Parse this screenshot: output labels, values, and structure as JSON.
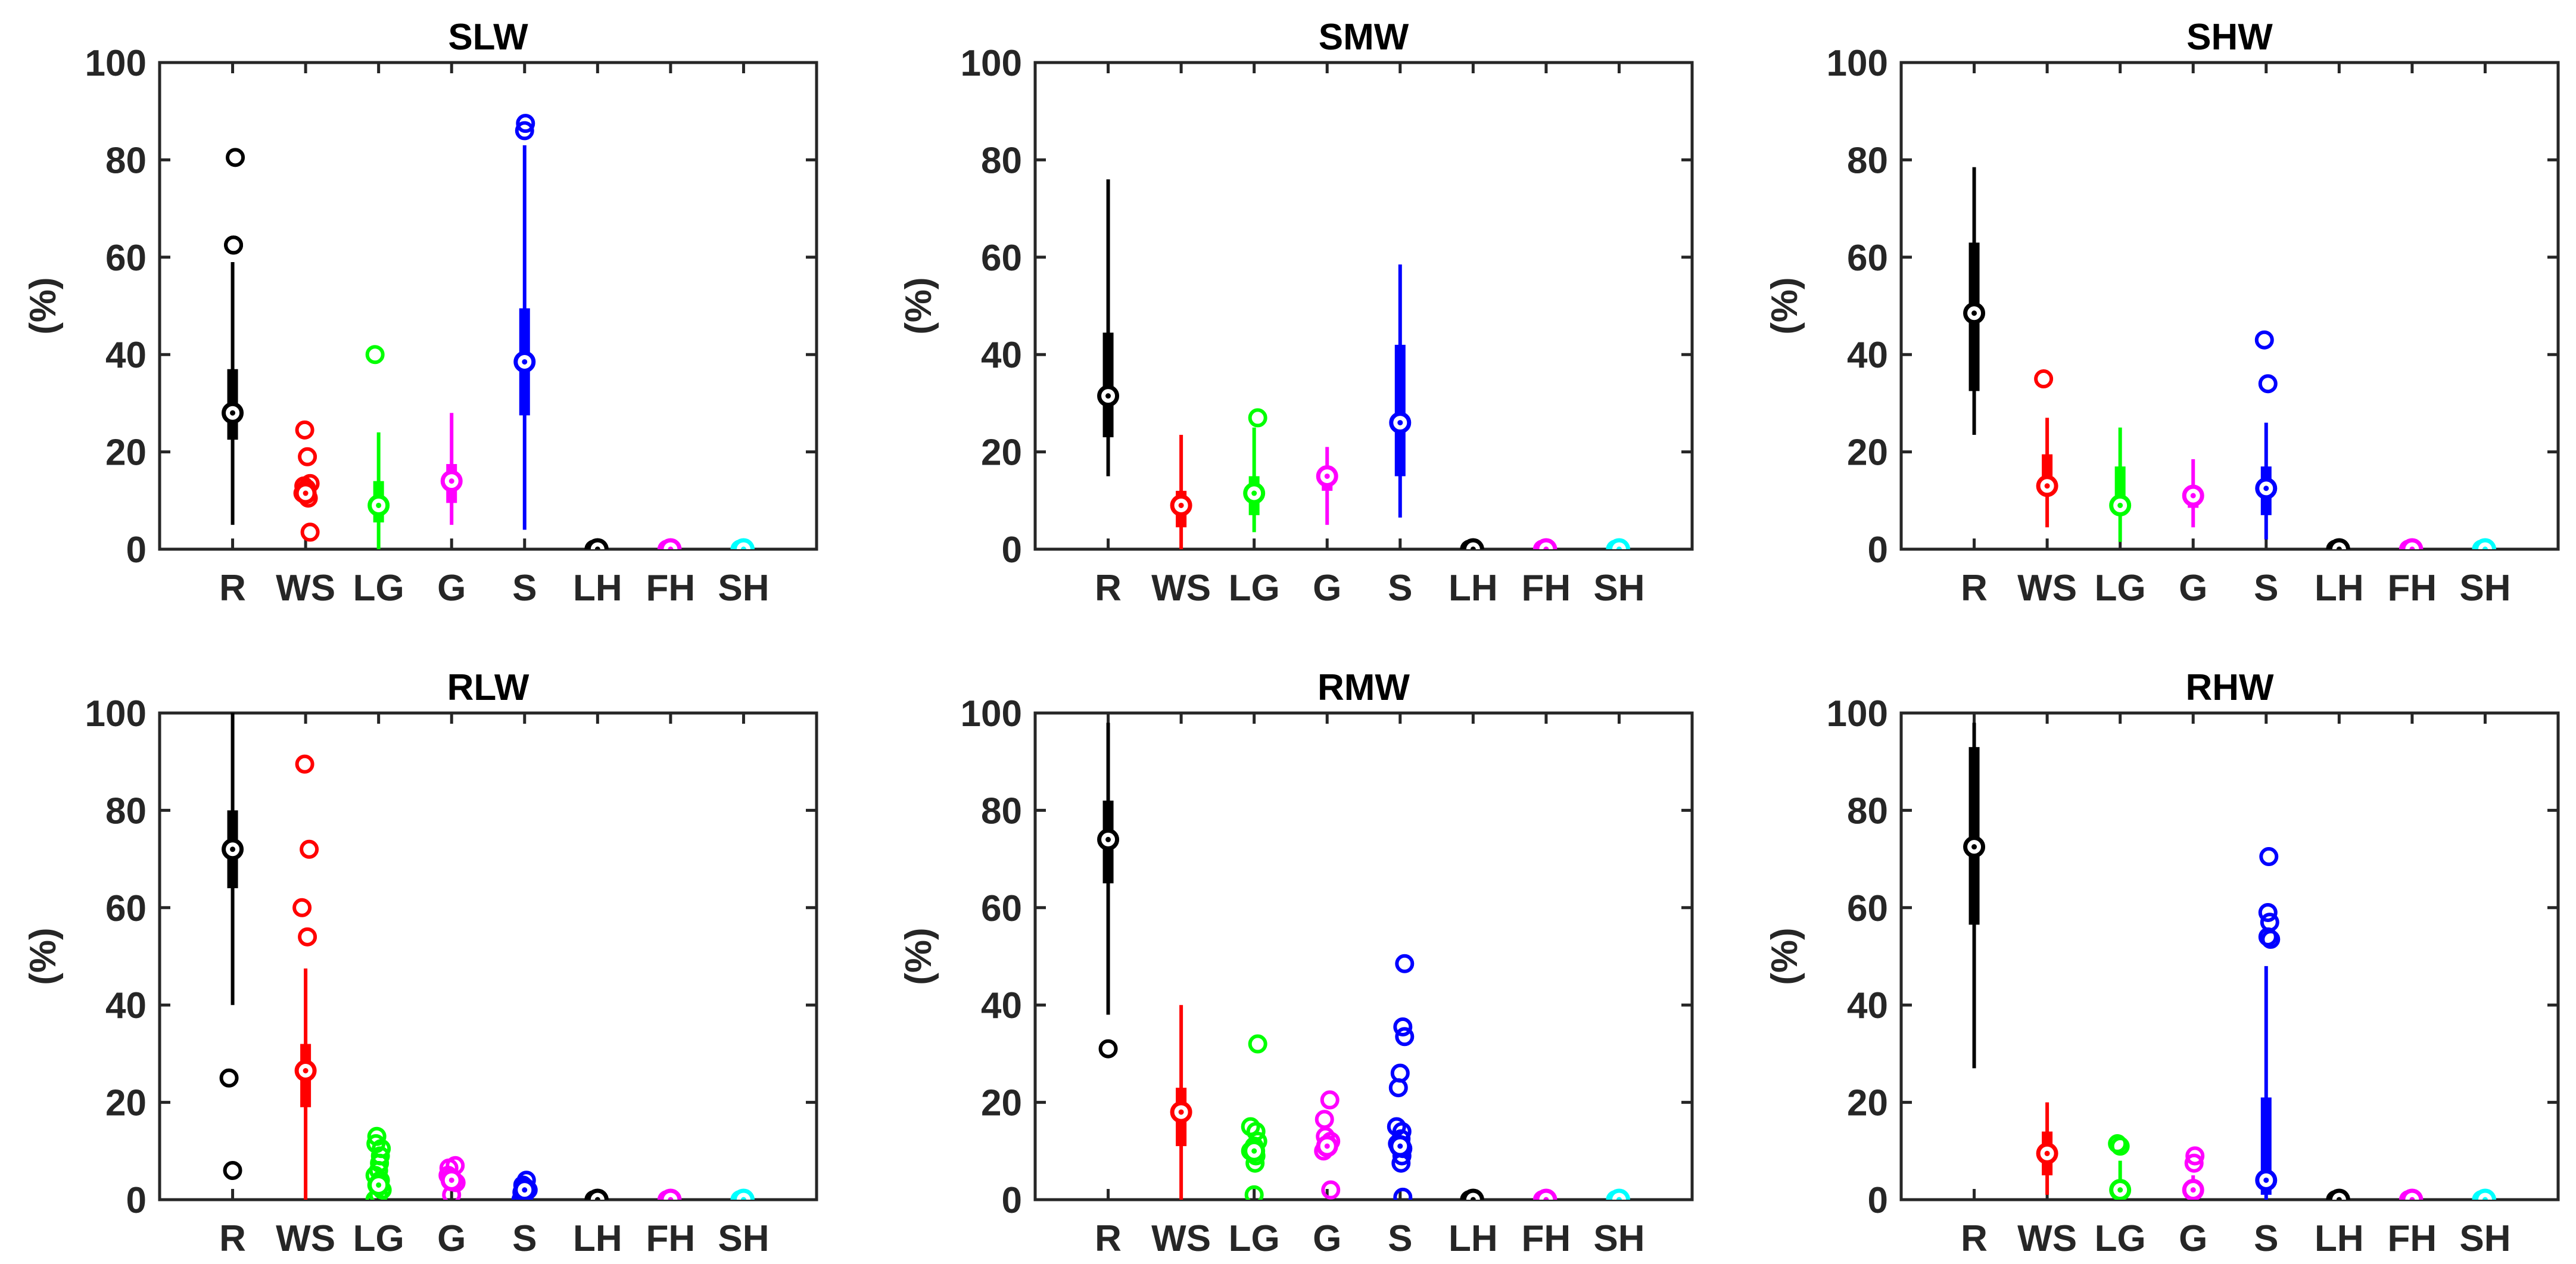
{
  "chart_data": [
    {
      "type": "violin-box",
      "title": "SLW",
      "ylabel": "(%)",
      "ylim": [
        0,
        100
      ],
      "yticks": [
        0,
        20,
        40,
        60,
        80,
        100
      ],
      "categories": [
        "R",
        "WS",
        "LG",
        "G",
        "S",
        "LH",
        "FH",
        "SH"
      ],
      "colors": [
        "#000000",
        "#ff0000",
        "#00ff00",
        "#ff00ff",
        "#0000ff",
        "#000000",
        "#ff00ff",
        "#00ffff"
      ],
      "stats": [
        {
          "med": 28,
          "q1": 22.5,
          "q3": 37,
          "wlo": 5,
          "whi": 59,
          "out": [
            62.5,
            62.5,
            80.5
          ]
        },
        {
          "med": 11.5,
          "q1": 11.5,
          "q3": 11.5,
          "wlo": 11.5,
          "whi": 11.5,
          "out": [
            3.5,
            10.5,
            11.5,
            12.5,
            13,
            13.5,
            19,
            24.5
          ]
        },
        {
          "med": 9,
          "q1": 5.5,
          "q3": 14,
          "wlo": 0,
          "whi": 24,
          "out": [
            40
          ]
        },
        {
          "med": 14,
          "q1": 9.5,
          "q3": 17.5,
          "wlo": 5,
          "whi": 28,
          "out": []
        },
        {
          "med": 38.5,
          "q1": 27.5,
          "q3": 49.5,
          "wlo": 4,
          "whi": 83,
          "out": [
            86,
            87.5
          ]
        },
        {
          "med": 0,
          "q1": 0,
          "q3": 0,
          "wlo": 0,
          "whi": 0,
          "out": [
            0
          ]
        },
        {
          "med": 0,
          "q1": 0,
          "q3": 0,
          "wlo": 0,
          "whi": 0,
          "out": [
            0
          ]
        },
        {
          "med": 0,
          "q1": 0,
          "q3": 0,
          "wlo": 0,
          "whi": 0,
          "out": [
            0
          ]
        }
      ]
    },
    {
      "type": "violin-box",
      "title": "SMW",
      "ylabel": "(%)",
      "ylim": [
        0,
        100
      ],
      "yticks": [
        0,
        20,
        40,
        60,
        80,
        100
      ],
      "categories": [
        "R",
        "WS",
        "LG",
        "G",
        "S",
        "LH",
        "FH",
        "SH"
      ],
      "colors": [
        "#000000",
        "#ff0000",
        "#00ff00",
        "#ff00ff",
        "#0000ff",
        "#000000",
        "#ff00ff",
        "#00ffff"
      ],
      "stats": [
        {
          "med": 31.5,
          "q1": 23,
          "q3": 44.5,
          "wlo": 15,
          "whi": 76,
          "out": []
        },
        {
          "med": 9,
          "q1": 4.5,
          "q3": 12,
          "wlo": 0,
          "whi": 23.5,
          "out": []
        },
        {
          "med": 11.5,
          "q1": 7,
          "q3": 15,
          "wlo": 3.5,
          "whi": 25,
          "out": [
            27
          ]
        },
        {
          "med": 15,
          "q1": 12,
          "q3": 16,
          "wlo": 5,
          "whi": 21,
          "out": []
        },
        {
          "med": 26,
          "q1": 15,
          "q3": 42,
          "wlo": 6.5,
          "whi": 58.5,
          "out": []
        },
        {
          "med": 0,
          "q1": 0,
          "q3": 0,
          "wlo": 0,
          "whi": 0,
          "out": [
            0
          ]
        },
        {
          "med": 0,
          "q1": 0,
          "q3": 0,
          "wlo": 0,
          "whi": 0,
          "out": [
            0
          ]
        },
        {
          "med": 0,
          "q1": 0,
          "q3": 0,
          "wlo": 0,
          "whi": 0,
          "out": [
            0
          ]
        }
      ]
    },
    {
      "type": "violin-box",
      "title": "SHW",
      "ylabel": "(%)",
      "ylim": [
        0,
        100
      ],
      "yticks": [
        0,
        20,
        40,
        60,
        80,
        100
      ],
      "categories": [
        "R",
        "WS",
        "LG",
        "G",
        "S",
        "LH",
        "FH",
        "SH"
      ],
      "colors": [
        "#000000",
        "#ff0000",
        "#00ff00",
        "#ff00ff",
        "#0000ff",
        "#000000",
        "#ff00ff",
        "#00ffff"
      ],
      "stats": [
        {
          "med": 48.5,
          "q1": 32.5,
          "q3": 63,
          "wlo": 23.5,
          "whi": 78.5,
          "out": []
        },
        {
          "med": 13,
          "q1": 11,
          "q3": 19.5,
          "wlo": 4.5,
          "whi": 27,
          "out": [
            35
          ]
        },
        {
          "med": 9,
          "q1": 7.5,
          "q3": 17,
          "wlo": 1.5,
          "whi": 25,
          "out": []
        },
        {
          "med": 11,
          "q1": 8.5,
          "q3": 13,
          "wlo": 4.5,
          "whi": 18.5,
          "out": []
        },
        {
          "med": 12.5,
          "q1": 7,
          "q3": 17,
          "wlo": 2,
          "whi": 26,
          "out": [
            34,
            43
          ]
        },
        {
          "med": 0,
          "q1": 0,
          "q3": 0,
          "wlo": 0,
          "whi": 0,
          "out": [
            0
          ]
        },
        {
          "med": 0,
          "q1": 0,
          "q3": 0,
          "wlo": 0,
          "whi": 0,
          "out": [
            0
          ]
        },
        {
          "med": 0,
          "q1": 0,
          "q3": 0,
          "wlo": 0,
          "whi": 0,
          "out": [
            0
          ]
        }
      ]
    },
    {
      "type": "violin-box",
      "title": "RLW",
      "ylabel": "(%)",
      "ylim": [
        0,
        100
      ],
      "yticks": [
        0,
        20,
        40,
        60,
        80,
        100
      ],
      "categories": [
        "R",
        "WS",
        "LG",
        "G",
        "S",
        "LH",
        "FH",
        "SH"
      ],
      "colors": [
        "#000000",
        "#ff0000",
        "#00ff00",
        "#ff00ff",
        "#0000ff",
        "#000000",
        "#ff00ff",
        "#00ffff"
      ],
      "stats": [
        {
          "med": 72,
          "q1": 64,
          "q3": 80,
          "wlo": 40,
          "whi": 100,
          "out": [
            6,
            25
          ]
        },
        {
          "med": 26.5,
          "q1": 19,
          "q3": 32,
          "wlo": 0,
          "whi": 47.5,
          "out": [
            54,
            60,
            72,
            89.5
          ]
        },
        {
          "med": 3,
          "q1": 3,
          "q3": 3,
          "wlo": 3,
          "whi": 3,
          "out": [
            0,
            1,
            2,
            3,
            4,
            5,
            6,
            7.5,
            9,
            10.5,
            11.5,
            13
          ]
        },
        {
          "med": 4,
          "q1": 4,
          "q3": 4,
          "wlo": 4,
          "whi": 4,
          "out": [
            1,
            3.5,
            4.5,
            5,
            6.5,
            7
          ]
        },
        {
          "med": 2,
          "q1": 2,
          "q3": 2,
          "wlo": 2,
          "whi": 2,
          "out": [
            0,
            1,
            1.5,
            2,
            2.5,
            3,
            4
          ]
        },
        {
          "med": 0,
          "q1": 0,
          "q3": 0,
          "wlo": 0,
          "whi": 0,
          "out": [
            0
          ]
        },
        {
          "med": 0,
          "q1": 0,
          "q3": 0,
          "wlo": 0,
          "whi": 0,
          "out": [
            0
          ]
        },
        {
          "med": 0,
          "q1": 0,
          "q3": 0,
          "wlo": 0,
          "whi": 0,
          "out": [
            0
          ]
        }
      ]
    },
    {
      "type": "violin-box",
      "title": "RMW",
      "ylabel": "(%)",
      "ylim": [
        0,
        100
      ],
      "yticks": [
        0,
        20,
        40,
        60,
        80,
        100
      ],
      "categories": [
        "R",
        "WS",
        "LG",
        "G",
        "S",
        "LH",
        "FH",
        "SH"
      ],
      "colors": [
        "#000000",
        "#ff0000",
        "#00ff00",
        "#ff00ff",
        "#0000ff",
        "#000000",
        "#ff00ff",
        "#00ffff"
      ],
      "stats": [
        {
          "med": 74,
          "q1": 65,
          "q3": 82,
          "wlo": 38,
          "whi": 98,
          "out": [
            31
          ]
        },
        {
          "med": 18,
          "q1": 11,
          "q3": 23,
          "wlo": 0,
          "whi": 40,
          "out": []
        },
        {
          "med": 10,
          "q1": 10,
          "q3": 10,
          "wlo": 10,
          "whi": 10,
          "out": [
            1,
            7.5,
            9,
            10,
            11,
            12,
            14,
            15,
            32
          ]
        },
        {
          "med": 11,
          "q1": 11,
          "q3": 11,
          "wlo": 11,
          "whi": 11,
          "out": [
            2,
            10,
            11,
            12,
            13,
            16.5,
            20.5
          ]
        },
        {
          "med": 11,
          "q1": 11,
          "q3": 11,
          "wlo": 11,
          "whi": 11,
          "out": [
            0.5,
            7.5,
            9,
            10.5,
            11.5,
            12.5,
            14,
            15,
            23,
            26,
            33.5,
            35.5,
            48.5
          ]
        },
        {
          "med": 0,
          "q1": 0,
          "q3": 0,
          "wlo": 0,
          "whi": 0,
          "out": [
            0
          ]
        },
        {
          "med": 0,
          "q1": 0,
          "q3": 0,
          "wlo": 0,
          "whi": 0,
          "out": [
            0
          ]
        },
        {
          "med": 0,
          "q1": 0,
          "q3": 0,
          "wlo": 0,
          "whi": 0,
          "out": [
            0
          ]
        }
      ]
    },
    {
      "type": "violin-box",
      "title": "RHW",
      "ylabel": "(%)",
      "ylim": [
        0,
        100
      ],
      "yticks": [
        0,
        20,
        40,
        60,
        80,
        100
      ],
      "categories": [
        "R",
        "WS",
        "LG",
        "G",
        "S",
        "LH",
        "FH",
        "SH"
      ],
      "colors": [
        "#000000",
        "#ff0000",
        "#00ff00",
        "#ff00ff",
        "#0000ff",
        "#000000",
        "#ff00ff",
        "#00ffff"
      ],
      "stats": [
        {
          "med": 72.5,
          "q1": 56.5,
          "q3": 93,
          "wlo": 27,
          "whi": 98,
          "out": []
        },
        {
          "med": 9.5,
          "q1": 5,
          "q3": 14,
          "wlo": 1,
          "whi": 20,
          "out": []
        },
        {
          "med": 2,
          "q1": 0,
          "q3": 4,
          "wlo": 0,
          "whi": 8,
          "out": [
            11,
            11.5
          ]
        },
        {
          "med": 2,
          "q1": 0,
          "q3": 4,
          "wlo": 0,
          "whi": 5,
          "out": [
            7.5,
            9
          ]
        },
        {
          "med": 4,
          "q1": 1,
          "q3": 21,
          "wlo": 0,
          "whi": 48,
          "out": [
            53.5,
            54,
            57,
            59,
            70.5
          ]
        },
        {
          "med": 0,
          "q1": 0,
          "q3": 0,
          "wlo": 0,
          "whi": 0,
          "out": [
            0
          ]
        },
        {
          "med": 0,
          "q1": 0,
          "q3": 0,
          "wlo": 0,
          "whi": 0,
          "out": [
            0
          ]
        },
        {
          "med": 0,
          "q1": 0,
          "q3": 0,
          "wlo": 0,
          "whi": 0,
          "out": [
            0
          ]
        }
      ]
    }
  ]
}
